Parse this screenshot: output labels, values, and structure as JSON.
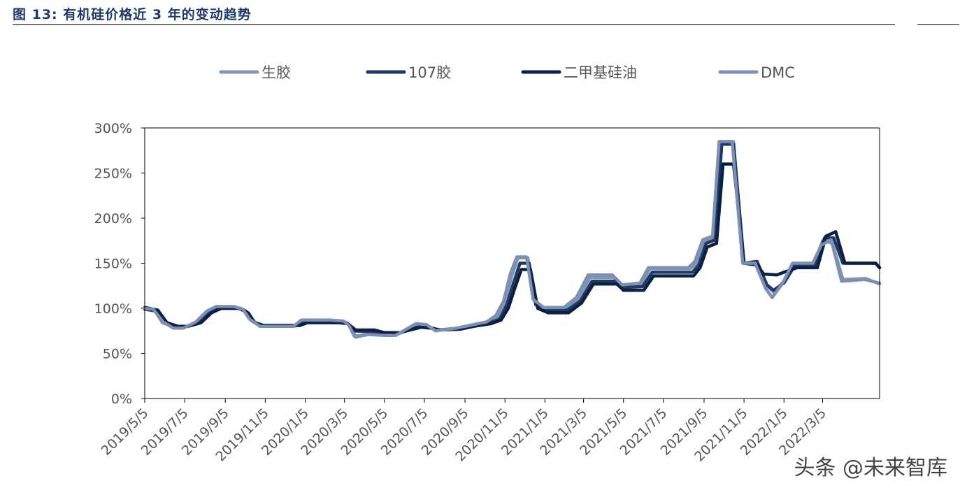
{
  "figure": {
    "title": "图 13: 有机硅价格近 3 年的变动趋势"
  },
  "watermark": "头条 @未来智库",
  "colors": {
    "title": "#1f3864",
    "series_raw_rubber": "#8496b0",
    "series_107": "#1f3864",
    "series_silicone_oil": "#0c1f44",
    "series_dmc": "#7d8fb3"
  },
  "chart_data": {
    "type": "line",
    "title": "",
    "xlabel": "",
    "ylabel": "",
    "x_range": [
      "2019-05-05",
      "2022-05-31"
    ],
    "ylim": [
      0,
      300
    ],
    "y_ticks": [
      0,
      50,
      100,
      150,
      200,
      250,
      300
    ],
    "y_tick_labels": [
      "0%",
      "50%",
      "100%",
      "150%",
      "200%",
      "250%",
      "300%"
    ],
    "x_tick_labels": [
      "2019/5/5",
      "2019/7/5",
      "2019/9/5",
      "2019/11/5",
      "2020/1/5",
      "2020/3/5",
      "2020/5/5",
      "2020/7/5",
      "2020/9/5",
      "2020/11/5",
      "2021/1/5",
      "2021/3/5",
      "2021/5/5",
      "2021/7/5",
      "2021/9/5",
      "2021/11/5",
      "2022/1/5",
      "2022/3/5"
    ],
    "x_tick_dates": [
      "2019-05-05",
      "2019-07-05",
      "2019-09-05",
      "2019-11-05",
      "2020-01-05",
      "2020-03-05",
      "2020-05-05",
      "2020-07-05",
      "2020-09-05",
      "2020-11-05",
      "2021-01-05",
      "2021-03-05",
      "2021-05-05",
      "2021-07-05",
      "2021-09-05",
      "2021-11-05",
      "2022-01-05",
      "2022-03-05"
    ],
    "grid": false,
    "legend_position": "top",
    "series": [
      {
        "name": "生胶",
        "color": "#8496b0",
        "points": [
          [
            "2019-05-05",
            100
          ],
          [
            "2019-05-20",
            98
          ],
          [
            "2019-06-01",
            84
          ],
          [
            "2019-06-20",
            79
          ],
          [
            "2019-07-05",
            79
          ],
          [
            "2019-07-25",
            84
          ],
          [
            "2019-08-10",
            96
          ],
          [
            "2019-08-25",
            101
          ],
          [
            "2019-09-20",
            101
          ],
          [
            "2019-10-05",
            98
          ],
          [
            "2019-10-15",
            86
          ],
          [
            "2019-10-30",
            81
          ],
          [
            "2019-11-05",
            80
          ],
          [
            "2019-12-20",
            80
          ],
          [
            "2020-01-01",
            86
          ],
          [
            "2020-02-15",
            86
          ],
          [
            "2020-03-05",
            85
          ],
          [
            "2020-03-15",
            80
          ],
          [
            "2020-03-22",
            68
          ],
          [
            "2020-04-10",
            71
          ],
          [
            "2020-05-05",
            71
          ],
          [
            "2020-05-25",
            71
          ],
          [
            "2020-06-25",
            82
          ],
          [
            "2020-07-10",
            80
          ],
          [
            "2020-07-25",
            76
          ],
          [
            "2020-08-25",
            78
          ],
          [
            "2020-09-15",
            80
          ],
          [
            "2020-10-10",
            84
          ],
          [
            "2020-10-25",
            90
          ],
          [
            "2020-11-05",
            106
          ],
          [
            "2020-11-15",
            135
          ],
          [
            "2020-11-25",
            156
          ],
          [
            "2020-12-10",
            156
          ],
          [
            "2020-12-20",
            108
          ],
          [
            "2021-01-05",
            100
          ],
          [
            "2021-02-05",
            100
          ],
          [
            "2021-02-25",
            110
          ],
          [
            "2021-03-15",
            134
          ],
          [
            "2021-04-20",
            134
          ],
          [
            "2021-05-05",
            125
          ],
          [
            "2021-06-01",
            127
          ],
          [
            "2021-06-15",
            144
          ],
          [
            "2021-08-15",
            144
          ],
          [
            "2021-08-25",
            150
          ],
          [
            "2021-09-05",
            174
          ],
          [
            "2021-09-20",
            178
          ],
          [
            "2021-09-30",
            285
          ],
          [
            "2021-10-20",
            285
          ],
          [
            "2021-11-05",
            150
          ],
          [
            "2021-11-25",
            150
          ],
          [
            "2021-12-10",
            125
          ],
          [
            "2021-12-20",
            118
          ],
          [
            "2022-01-05",
            130
          ],
          [
            "2022-01-20",
            150
          ],
          [
            "2022-02-20",
            150
          ],
          [
            "2022-03-05",
            175
          ],
          [
            "2022-03-20",
            172
          ],
          [
            "2022-04-05",
            132
          ],
          [
            "2022-05-10",
            133
          ],
          [
            "2022-05-31",
            127
          ]
        ]
      },
      {
        "name": "107胶",
        "color": "#1f3864",
        "points": [
          [
            "2019-05-05",
            99
          ],
          [
            "2019-05-22",
            97
          ],
          [
            "2019-06-05",
            84
          ],
          [
            "2019-06-22",
            80
          ],
          [
            "2019-07-08",
            80
          ],
          [
            "2019-07-28",
            86
          ],
          [
            "2019-08-12",
            96
          ],
          [
            "2019-08-28",
            100
          ],
          [
            "2019-09-25",
            100
          ],
          [
            "2019-10-08",
            96
          ],
          [
            "2019-10-18",
            85
          ],
          [
            "2019-11-01",
            81
          ],
          [
            "2019-11-05",
            81
          ],
          [
            "2019-12-25",
            81
          ],
          [
            "2020-01-05",
            85
          ],
          [
            "2020-02-20",
            85
          ],
          [
            "2020-03-08",
            84
          ],
          [
            "2020-03-20",
            75
          ],
          [
            "2020-04-15",
            74
          ],
          [
            "2020-05-05",
            72
          ],
          [
            "2020-05-25",
            72
          ],
          [
            "2020-06-28",
            80
          ],
          [
            "2020-07-12",
            79
          ],
          [
            "2020-07-28",
            76
          ],
          [
            "2020-08-28",
            77
          ],
          [
            "2020-09-15",
            80
          ],
          [
            "2020-10-12",
            84
          ],
          [
            "2020-10-28",
            88
          ],
          [
            "2020-11-08",
            104
          ],
          [
            "2020-11-18",
            128
          ],
          [
            "2020-11-28",
            150
          ],
          [
            "2020-12-12",
            150
          ],
          [
            "2020-12-22",
            104
          ],
          [
            "2021-01-08",
            98
          ],
          [
            "2021-02-08",
            98
          ],
          [
            "2021-02-28",
            108
          ],
          [
            "2021-03-18",
            130
          ],
          [
            "2021-04-22",
            130
          ],
          [
            "2021-05-05",
            123
          ],
          [
            "2021-06-03",
            124
          ],
          [
            "2021-06-18",
            140
          ],
          [
            "2021-08-18",
            140
          ],
          [
            "2021-08-28",
            148
          ],
          [
            "2021-09-08",
            172
          ],
          [
            "2021-09-22",
            176
          ],
          [
            "2021-10-02",
            282
          ],
          [
            "2021-10-20",
            282
          ],
          [
            "2021-11-05",
            150
          ],
          [
            "2021-11-25",
            152
          ],
          [
            "2021-12-10",
            126
          ],
          [
            "2021-12-20",
            120
          ],
          [
            "2022-01-05",
            128
          ],
          [
            "2022-01-22",
            148
          ],
          [
            "2022-02-22",
            148
          ],
          [
            "2022-03-08",
            178
          ],
          [
            "2022-03-22",
            178
          ],
          [
            "2022-04-05",
            150
          ],
          [
            "2022-05-25",
            150
          ],
          [
            "2022-05-31",
            145
          ]
        ]
      },
      {
        "name": "二甲基硅油",
        "color": "#0c1f44",
        "points": [
          [
            "2019-05-05",
            101
          ],
          [
            "2019-05-25",
            98
          ],
          [
            "2019-06-08",
            84
          ],
          [
            "2019-06-25",
            80
          ],
          [
            "2019-07-10",
            80
          ],
          [
            "2019-07-30",
            84
          ],
          [
            "2019-08-15",
            95
          ],
          [
            "2019-08-30",
            100
          ],
          [
            "2019-09-28",
            100
          ],
          [
            "2019-10-10",
            95
          ],
          [
            "2019-10-20",
            84
          ],
          [
            "2019-11-03",
            81
          ],
          [
            "2019-11-05",
            81
          ],
          [
            "2019-12-28",
            81
          ],
          [
            "2020-01-08",
            84
          ],
          [
            "2020-02-25",
            84
          ],
          [
            "2020-03-10",
            83
          ],
          [
            "2020-03-22",
            76
          ],
          [
            "2020-04-20",
            76
          ],
          [
            "2020-05-05",
            73
          ],
          [
            "2020-05-28",
            73
          ],
          [
            "2020-06-30",
            79
          ],
          [
            "2020-07-15",
            78
          ],
          [
            "2020-07-30",
            76
          ],
          [
            "2020-08-30",
            77
          ],
          [
            "2020-09-18",
            80
          ],
          [
            "2020-10-15",
            83
          ],
          [
            "2020-10-30",
            87
          ],
          [
            "2020-11-10",
            100
          ],
          [
            "2020-11-20",
            122
          ],
          [
            "2020-11-30",
            143
          ],
          [
            "2020-12-14",
            143
          ],
          [
            "2020-12-25",
            100
          ],
          [
            "2021-01-10",
            95
          ],
          [
            "2021-02-10",
            95
          ],
          [
            "2021-03-02",
            106
          ],
          [
            "2021-03-20",
            127
          ],
          [
            "2021-04-25",
            127
          ],
          [
            "2021-05-05",
            120
          ],
          [
            "2021-06-05",
            120
          ],
          [
            "2021-06-20",
            136
          ],
          [
            "2021-08-20",
            136
          ],
          [
            "2021-08-30",
            145
          ],
          [
            "2021-09-10",
            168
          ],
          [
            "2021-09-24",
            172
          ],
          [
            "2021-10-04",
            260
          ],
          [
            "2021-10-20",
            260
          ],
          [
            "2021-11-05",
            150
          ],
          [
            "2021-11-25",
            148
          ],
          [
            "2021-12-05",
            138
          ],
          [
            "2021-12-25",
            137
          ],
          [
            "2022-01-05",
            140
          ],
          [
            "2022-01-25",
            145
          ],
          [
            "2022-02-25",
            145
          ],
          [
            "2022-03-10",
            180
          ],
          [
            "2022-03-25",
            185
          ],
          [
            "2022-04-08",
            150
          ],
          [
            "2022-05-25",
            150
          ],
          [
            "2022-05-31",
            145
          ]
        ]
      },
      {
        "name": "DMC",
        "color": "#7d8fb3",
        "points": [
          [
            "2019-05-05",
            100
          ],
          [
            "2019-05-18",
            99
          ],
          [
            "2019-06-02",
            85
          ],
          [
            "2019-06-18",
            78
          ],
          [
            "2019-07-03",
            78
          ],
          [
            "2019-07-22",
            85
          ],
          [
            "2019-08-08",
            97
          ],
          [
            "2019-08-22",
            102
          ],
          [
            "2019-09-18",
            102
          ],
          [
            "2019-10-02",
            99
          ],
          [
            "2019-10-12",
            88
          ],
          [
            "2019-10-28",
            80
          ],
          [
            "2019-11-05",
            80
          ],
          [
            "2019-12-18",
            80
          ],
          [
            "2019-12-30",
            87
          ],
          [
            "2020-02-12",
            87
          ],
          [
            "2020-03-03",
            86
          ],
          [
            "2020-03-12",
            81
          ],
          [
            "2020-03-20",
            69
          ],
          [
            "2020-04-08",
            71
          ],
          [
            "2020-05-05",
            70
          ],
          [
            "2020-05-22",
            70
          ],
          [
            "2020-06-22",
            83
          ],
          [
            "2020-07-08",
            82
          ],
          [
            "2020-07-22",
            75
          ],
          [
            "2020-08-22",
            78
          ],
          [
            "2020-09-12",
            81
          ],
          [
            "2020-10-08",
            85
          ],
          [
            "2020-10-22",
            92
          ],
          [
            "2020-11-03",
            108
          ],
          [
            "2020-11-13",
            138
          ],
          [
            "2020-11-23",
            157
          ],
          [
            "2020-12-08",
            157
          ],
          [
            "2020-12-18",
            110
          ],
          [
            "2021-01-03",
            101
          ],
          [
            "2021-02-03",
            101
          ],
          [
            "2021-02-22",
            112
          ],
          [
            "2021-03-12",
            137
          ],
          [
            "2021-04-18",
            137
          ],
          [
            "2021-05-03",
            126
          ],
          [
            "2021-05-30",
            128
          ],
          [
            "2021-06-12",
            145
          ],
          [
            "2021-08-12",
            145
          ],
          [
            "2021-08-22",
            152
          ],
          [
            "2021-09-03",
            176
          ],
          [
            "2021-09-18",
            180
          ],
          [
            "2021-09-28",
            285
          ],
          [
            "2021-10-18",
            285
          ],
          [
            "2021-11-03",
            150
          ],
          [
            "2021-11-22",
            150
          ],
          [
            "2021-12-08",
            122
          ],
          [
            "2021-12-18",
            112
          ],
          [
            "2022-01-03",
            128
          ],
          [
            "2022-01-18",
            150
          ],
          [
            "2022-02-18",
            150
          ],
          [
            "2022-03-03",
            170
          ],
          [
            "2022-03-18",
            176
          ],
          [
            "2022-04-03",
            130
          ],
          [
            "2022-05-08",
            132
          ],
          [
            "2022-05-31",
            128
          ]
        ]
      }
    ]
  }
}
